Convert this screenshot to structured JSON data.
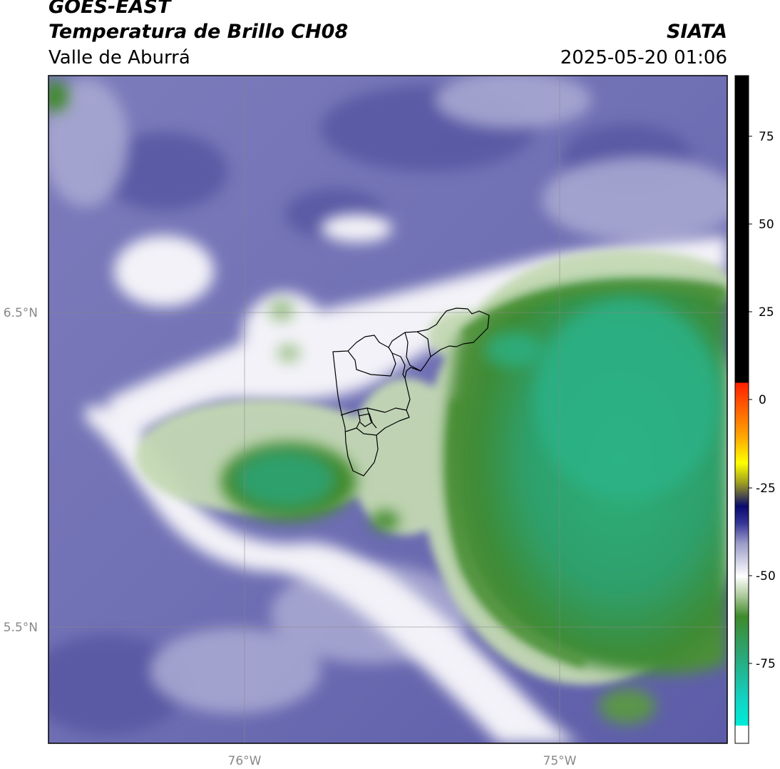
{
  "header": {
    "satellite": "GOES-EAST",
    "product": "Temperatura de Brillo CH08",
    "region": "Valle de Aburrá",
    "organization": "SIATA",
    "datetime": "2025-05-20 01:06"
  },
  "map": {
    "lat_ticks": [
      "6.5°N",
      "5.5°N"
    ],
    "lon_ticks": [
      "76°W",
      "75°W"
    ],
    "layers": [
      "brightness-temperature-field",
      "graticule",
      "valle-de-aburra-municipal-boundaries"
    ]
  },
  "colorbar": {
    "ticks": [
      "75",
      "50",
      "25",
      "0",
      "-25",
      "-50",
      "-75"
    ],
    "stops": [
      "#ffffff",
      "#00e5e0",
      "#2aa878",
      "#3f8a2c",
      "#c9dcb9",
      "#ffffff",
      "#7c7cba",
      "#343496",
      "#0a0a6e",
      "#9e9e20",
      "#ffff00",
      "#ffa500",
      "#ff2000",
      "#000000"
    ]
  },
  "colors": {
    "cold_cloud_green": "#2fae74",
    "dry_blue": "#6464ae",
    "moist_white": "#ecebf3"
  }
}
